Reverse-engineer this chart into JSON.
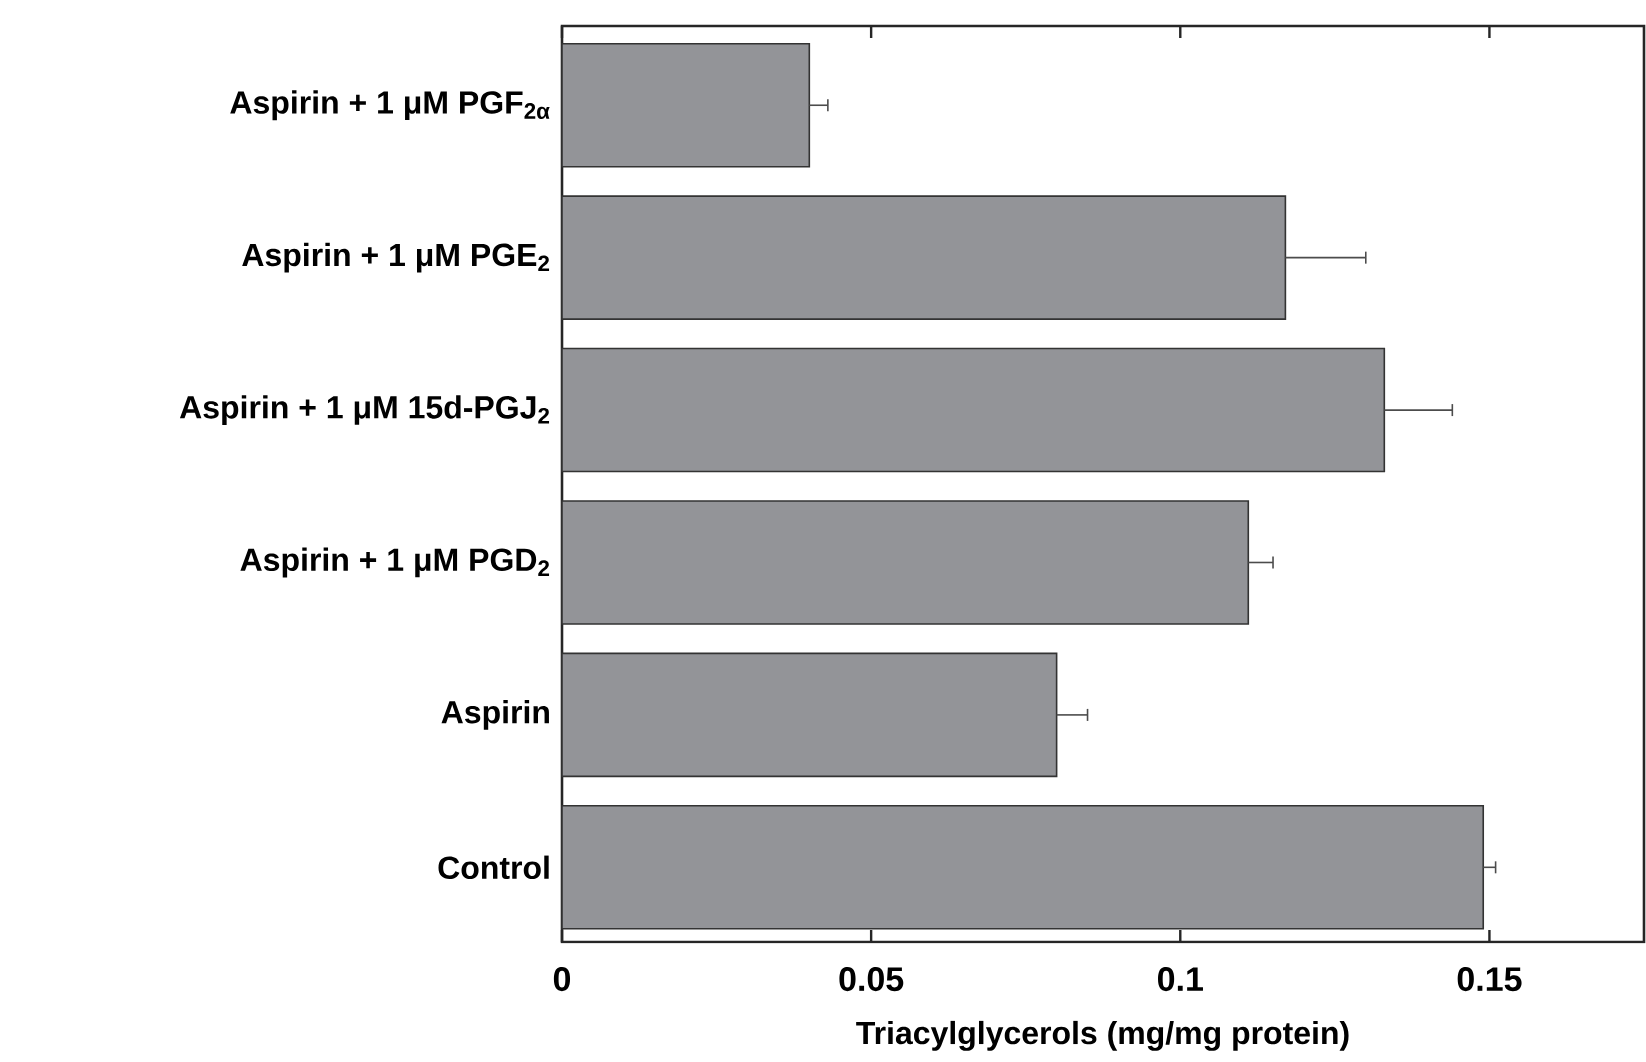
{
  "chart_data": {
    "type": "bar",
    "orientation": "horizontal",
    "xlabel": "Triacylglycerols (mg/mg protein)",
    "categories": [
      "Aspirin + 1 μM PGF$_{2α}$",
      "Aspirin + 1 μM PGE$_{2}$",
      "Aspirin + 1 μM 15d-PGJ$_{2}$",
      "Aspirin + 1 μM PGD$_{2}$",
      "Aspirin",
      "Control"
    ],
    "values": [
      0.04,
      0.117,
      0.133,
      0.111,
      0.08,
      0.149
    ],
    "errors": [
      0.003,
      0.013,
      0.011,
      0.004,
      0.005,
      0.002
    ],
    "color": "#939498",
    "xlim": [
      0,
      0.175
    ],
    "xticks": [
      0,
      0.05,
      0.1,
      0.15
    ]
  }
}
